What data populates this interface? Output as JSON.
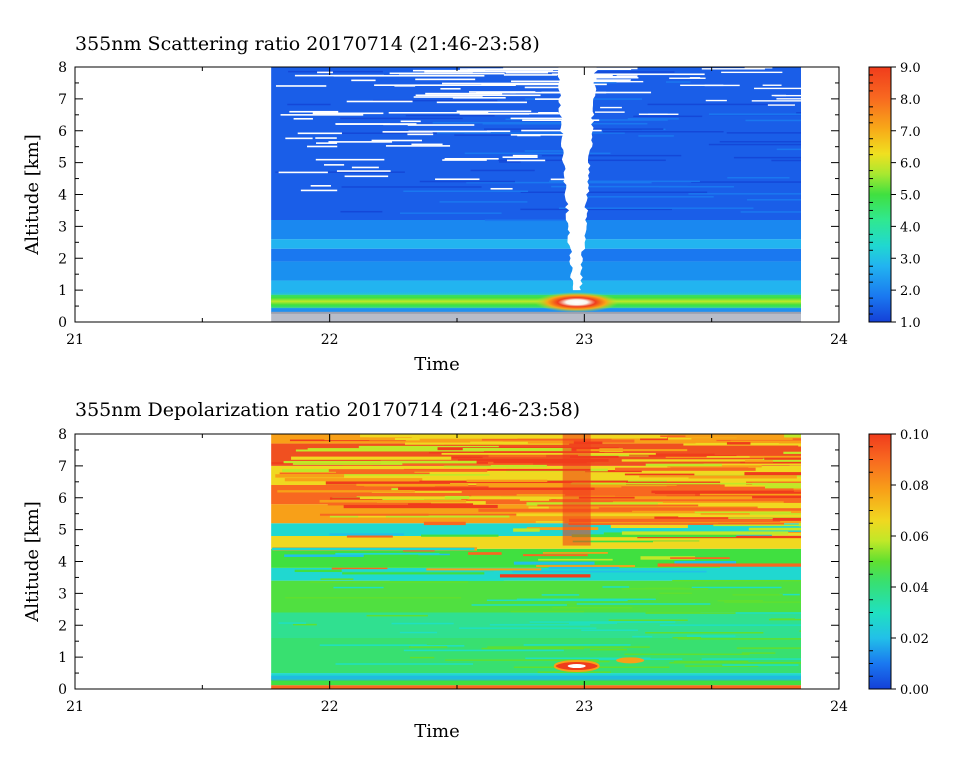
{
  "chart_data": [
    {
      "type": "heatmap",
      "title": "355nm Scattering ratio  20170714 (21:46-23:58)",
      "xlabel": "Time",
      "ylabel": "Altitude [km]",
      "xlim": [
        21,
        24
      ],
      "ylim": [
        0,
        8
      ],
      "x_ticks": [
        "21",
        "22",
        "23",
        "24"
      ],
      "y_ticks": [
        "0",
        "1",
        "2",
        "3",
        "4",
        "5",
        "6",
        "7",
        "8"
      ],
      "data_time_range": [
        21.77,
        23.97
      ],
      "colorbar": {
        "range": [
          1.0,
          9.0
        ],
        "ticks": [
          "1.0",
          "2.0",
          "3.0",
          "4.0",
          "5.0",
          "6.0",
          "7.0",
          "8.0",
          "9.0"
        ]
      },
      "features": [
        {
          "kind": "boundary-layer-aerosol",
          "altitude_km": 0.65,
          "value": 4.5
        },
        {
          "kind": "cloud-core",
          "time": 22.97,
          "altitude_km": 0.62,
          "value": 8.5
        },
        {
          "kind": "aerosol-layer",
          "altitude_km": 2.5,
          "value": 2.6
        },
        {
          "kind": "free-troposphere",
          "altitude_range_km": [
            3,
            8
          ],
          "value": 1.6
        },
        {
          "kind": "no-data-column",
          "time_range": [
            22.9,
            23.05
          ],
          "altitude_range_km": [
            1,
            8
          ]
        }
      ]
    },
    {
      "type": "heatmap",
      "title": "355nm Depolarization ratio  20170714 (21:46-23:58)",
      "xlabel": "Time",
      "ylabel": "Altitude [km]",
      "xlim": [
        21,
        24
      ],
      "ylim": [
        0,
        8
      ],
      "x_ticks": [
        "21",
        "22",
        "23",
        "24"
      ],
      "y_ticks": [
        "0",
        "1",
        "2",
        "3",
        "4",
        "5",
        "6",
        "7",
        "8"
      ],
      "data_time_range": [
        21.77,
        23.97
      ],
      "colorbar": {
        "range": [
          0.0,
          0.1
        ],
        "ticks": [
          "0.00",
          "0.02",
          "0.04",
          "0.06",
          "0.08",
          "0.10"
        ]
      },
      "features": [
        {
          "kind": "low-depol",
          "altitude_range_km": [
            0.1,
            2.5
          ],
          "value": 0.035
        },
        {
          "kind": "mid",
          "altitude_range_km": [
            2.5,
            4.5
          ],
          "value": 0.045
        },
        {
          "kind": "high-depol",
          "altitude_range_km": [
            4.5,
            8
          ],
          "value": 0.085
        },
        {
          "kind": "cloud-core",
          "time": 22.97,
          "altitude_km": 0.7,
          "value": 0.095
        }
      ]
    }
  ]
}
